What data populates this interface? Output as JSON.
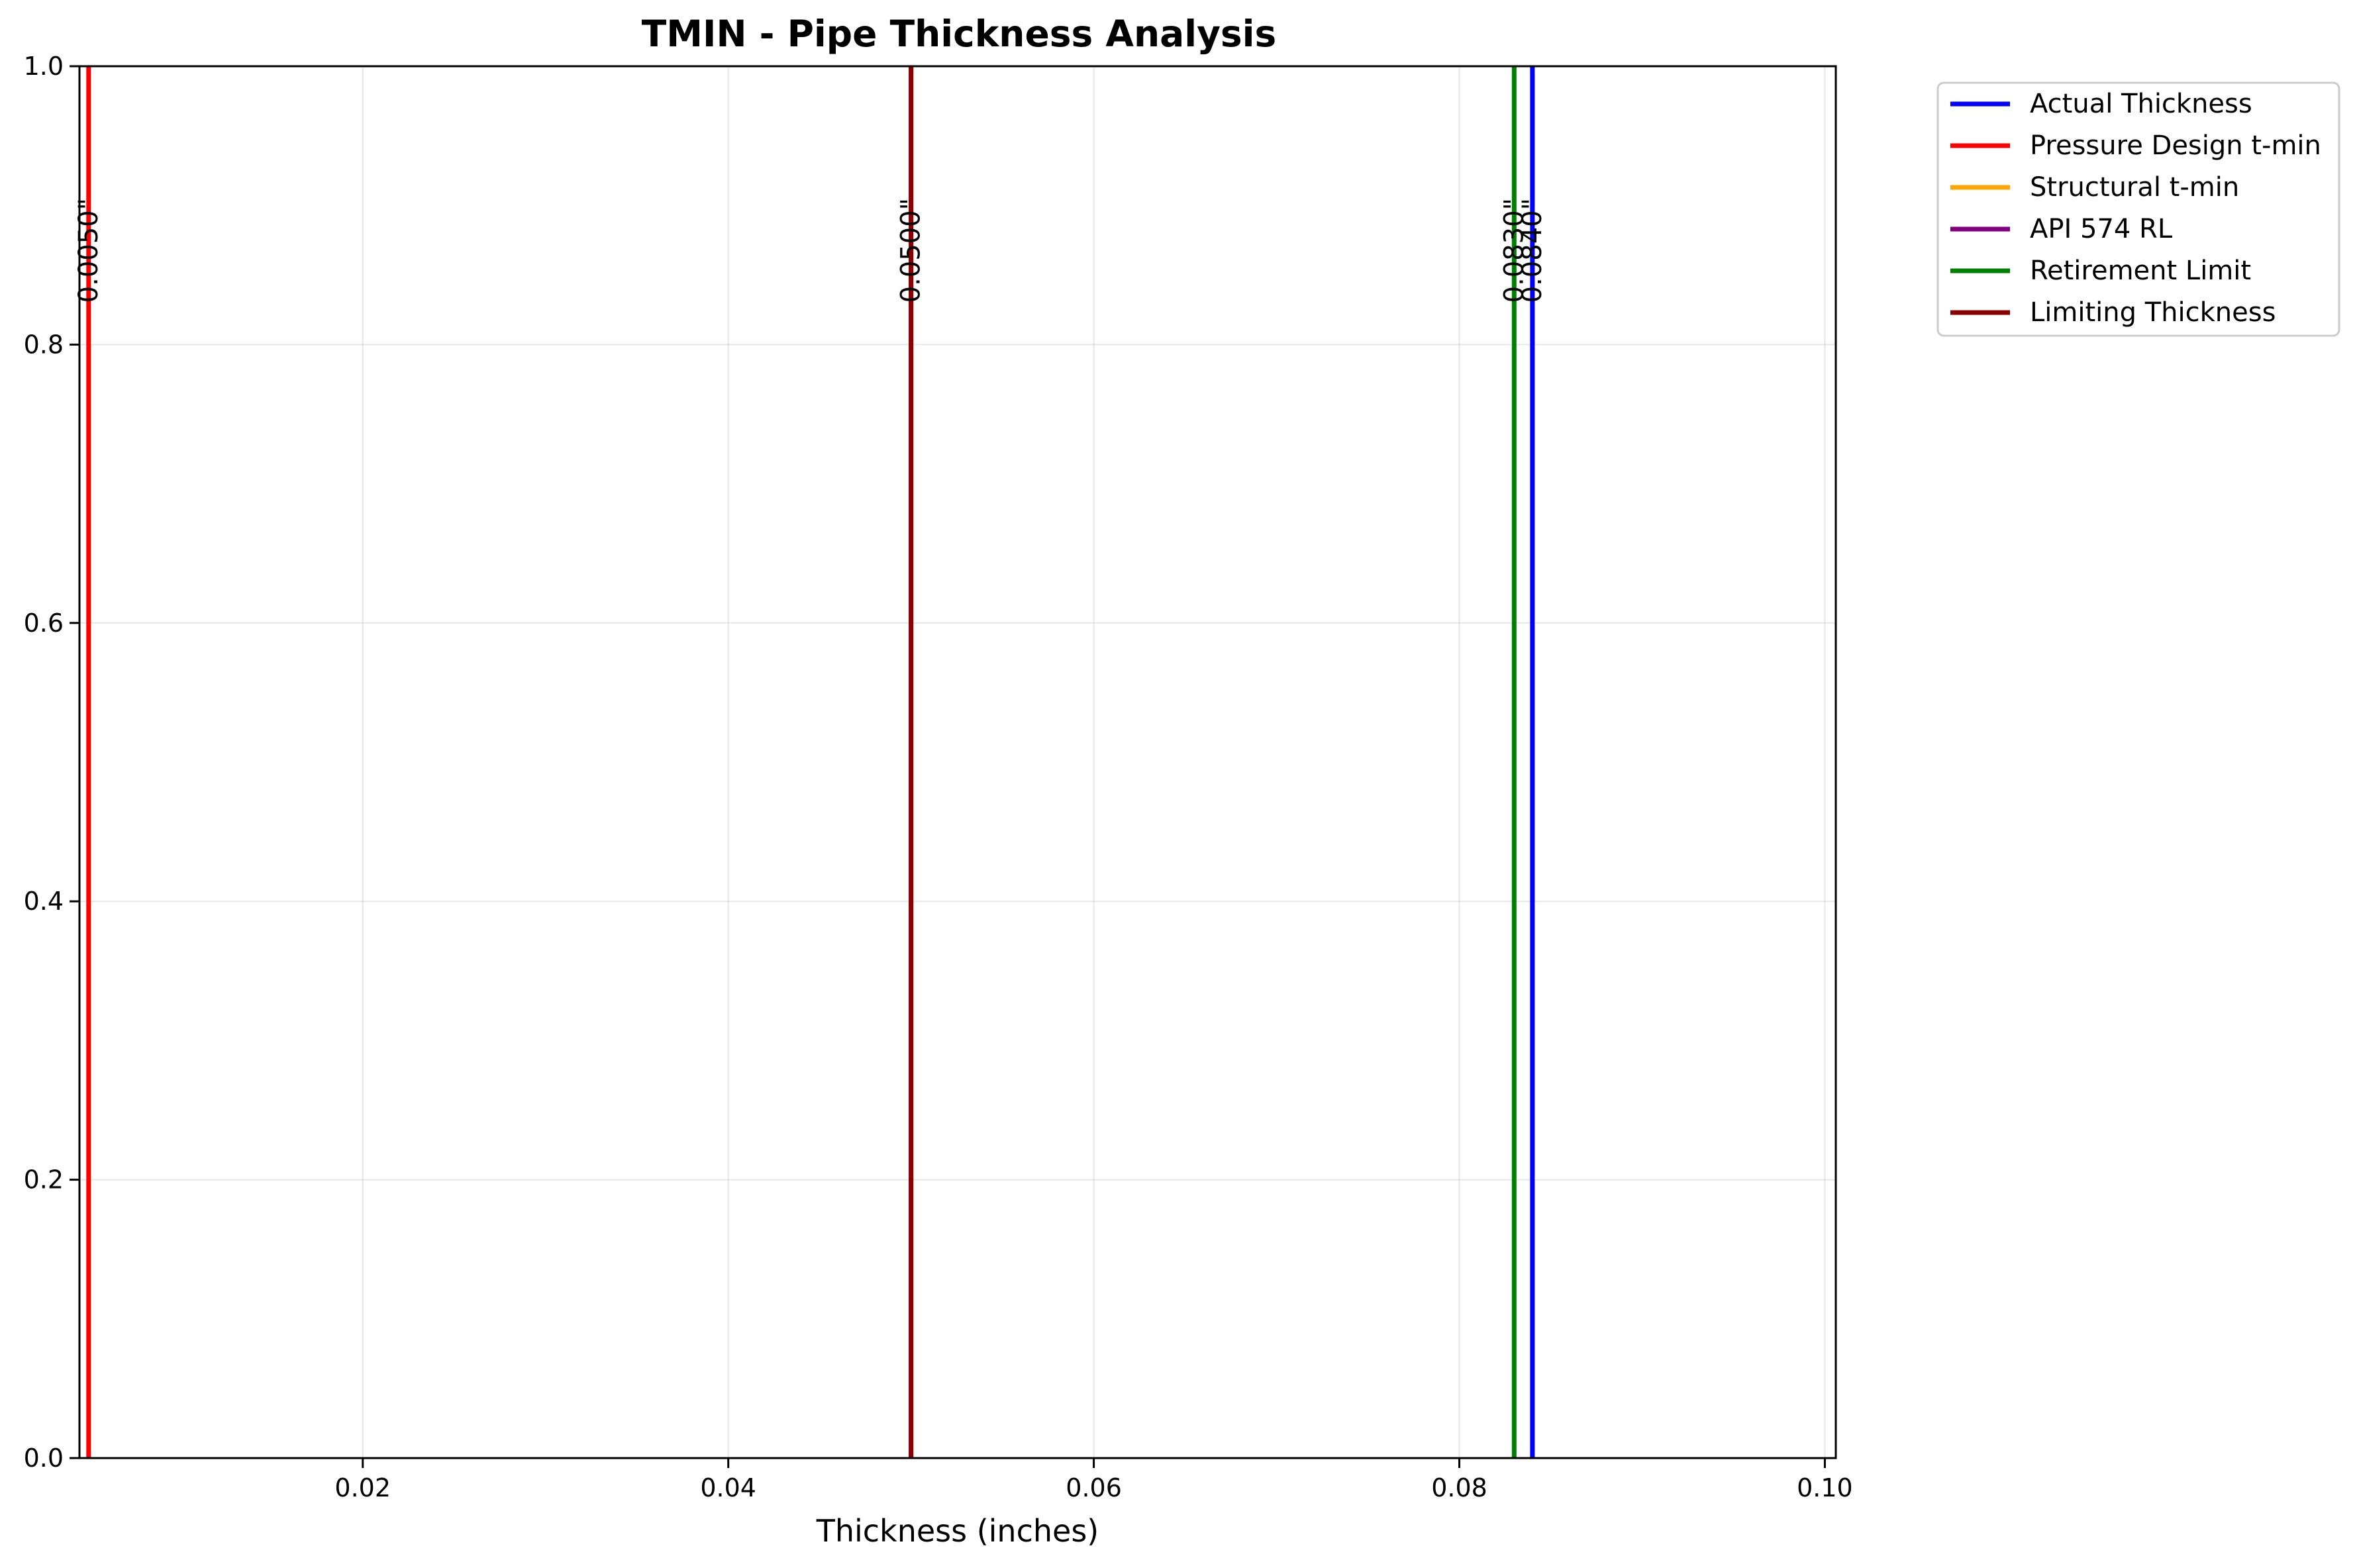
{
  "chart_data": {
    "type": "line",
    "title": "TMIN - Pipe Thickness Analysis",
    "xlabel": "Thickness (inches)",
    "ylabel": "",
    "xlim": [
      0.0045,
      0.1006
    ],
    "ylim": [
      0,
      1
    ],
    "x_ticks": [
      "0.02",
      "0.04",
      "0.06",
      "0.08",
      "0.10"
    ],
    "x_tick_values": [
      0.02,
      0.04,
      0.06,
      0.08,
      0.1
    ],
    "y_ticks": [
      "0.0",
      "0.2",
      "0.4",
      "0.6",
      "0.8",
      "1.0"
    ],
    "y_tick_values": [
      0.0,
      0.2,
      0.4,
      0.6,
      0.8,
      1.0
    ],
    "grid": true,
    "legend_position": "outside-top-right",
    "series": [
      {
        "name": "Actual Thickness",
        "x": 0.084,
        "color": "#0000ff"
      },
      {
        "name": "Pressure Design t-min",
        "x": 0.005,
        "color": "#ff0000"
      },
      {
        "name": "Structural t-min",
        "x": 0.05,
        "color": "#ffa500"
      },
      {
        "name": "API 574 RL",
        "x": 0.05,
        "color": "#800080"
      },
      {
        "name": "Retirement Limit",
        "x": 0.083,
        "color": "#008000"
      },
      {
        "name": "Limiting Thickness",
        "x": 0.05,
        "color": "#8b0000"
      }
    ],
    "annotations": [
      {
        "text": "0.0050\"",
        "x": 0.005,
        "y": 0.83
      },
      {
        "text": "0.0500\"",
        "x": 0.05,
        "y": 0.83
      },
      {
        "text": "0.0830\"",
        "x": 0.083,
        "y": 0.83
      },
      {
        "text": "0.0840\"",
        "x": 0.084,
        "y": 0.83
      }
    ]
  }
}
